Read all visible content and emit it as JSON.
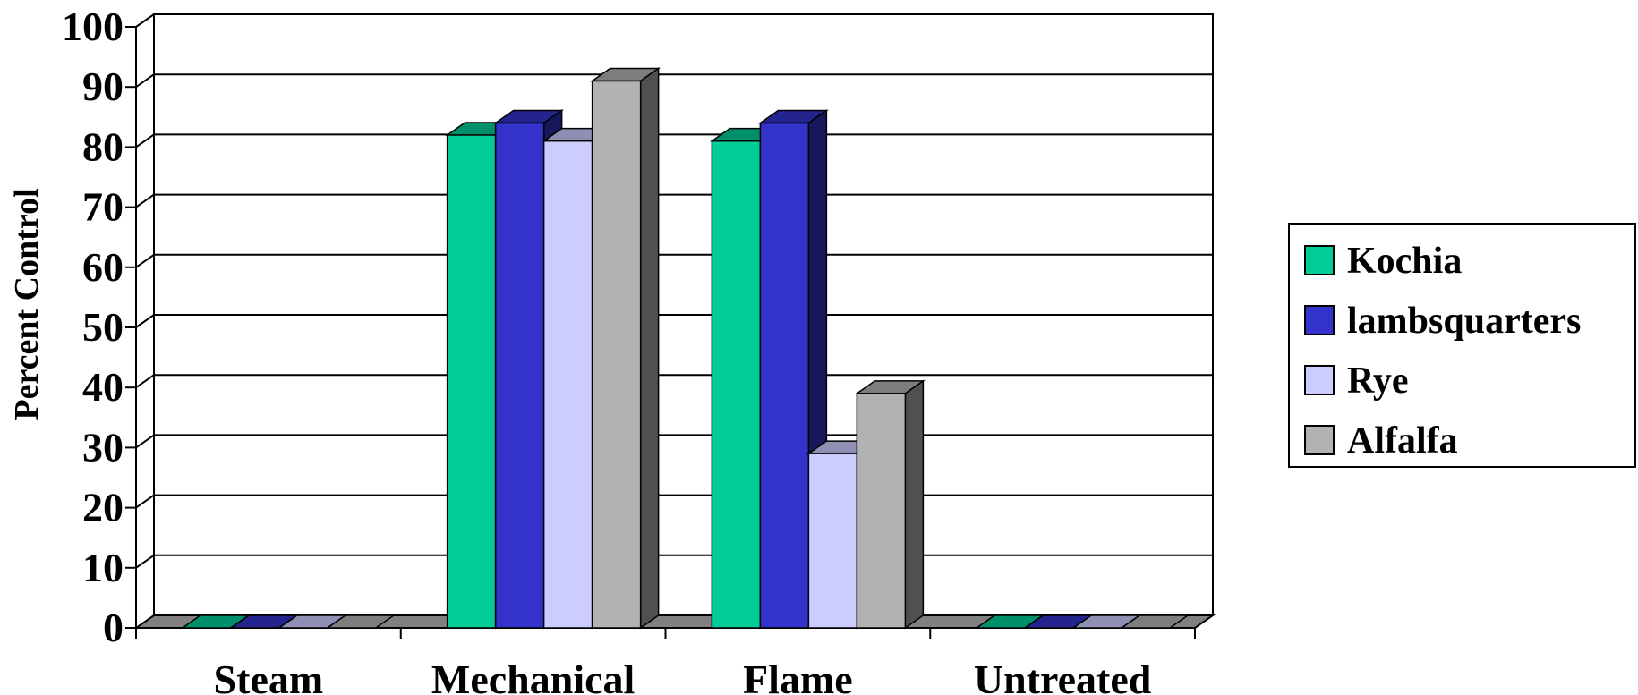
{
  "chart_data": {
    "type": "bar",
    "title": "",
    "xlabel": "",
    "ylabel": "Percent Control",
    "ylim": [
      0,
      100
    ],
    "yticks": [
      0,
      10,
      20,
      30,
      40,
      50,
      60,
      70,
      80,
      90,
      100
    ],
    "categories": [
      "Steam",
      "Mechanical",
      "Flame",
      "Untreated"
    ],
    "series": [
      {
        "name": "Kochia",
        "values": [
          0,
          82,
          81,
          0
        ],
        "color": "#00cc99"
      },
      {
        "name": "lambsquarters",
        "values": [
          0,
          84,
          84,
          0
        ],
        "color": "#3333cc"
      },
      {
        "name": "Rye",
        "values": [
          0,
          81,
          29,
          0
        ],
        "color": "#ccccff"
      },
      {
        "name": "Alfalfa",
        "values": [
          0,
          91,
          39,
          0
        ],
        "color": "#b2b2b2"
      }
    ],
    "grid": true,
    "legend": "right",
    "style": "3d-column"
  }
}
